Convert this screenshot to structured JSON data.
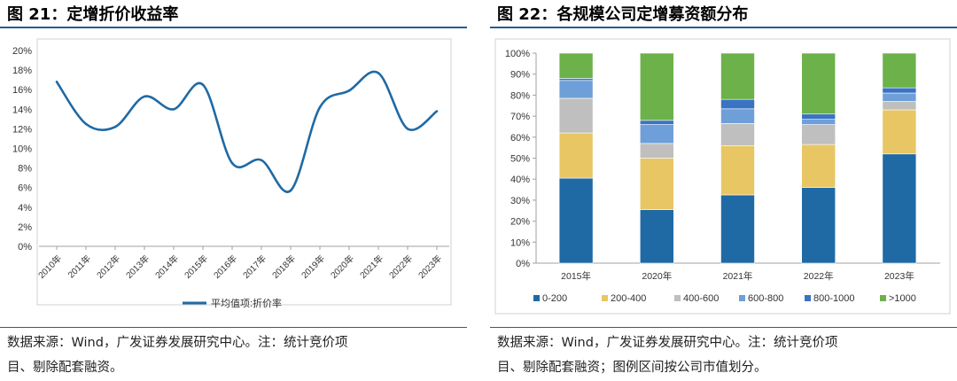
{
  "left": {
    "title": "图 21：定增折价收益率",
    "source_line1": "数据来源：Wind，广发证券发展研究中心。注：统计竞价项",
    "source_line2": "目、剔除配套融资。"
  },
  "right": {
    "title": "图 22：各规模公司定增募资额分布",
    "source_line1": "数据来源：Wind，广发证券发展研究中心。注：统计竞价项",
    "source_line2": "目、剔除配套融资；图例区间按公司市值划分。"
  },
  "colors": {
    "line": "#1f6aa5",
    "rule": "#2a5a9a",
    "seg_0_200": "#1f6aa5",
    "seg_200_400": "#e8c663",
    "seg_400_600": "#bfbfbf",
    "seg_600_800": "#6f9fd8",
    "seg_800_1000": "#3a73c4",
    "seg_gt_1000": "#6db14a"
  },
  "chart_data": [
    {
      "type": "line",
      "categories": [
        "2010年",
        "2011年",
        "2012年",
        "2013年",
        "2014年",
        "2015年",
        "2016年",
        "2017年",
        "2018年",
        "2019年",
        "2020年",
        "2021年",
        "2022年",
        "2023年"
      ],
      "series": [
        {
          "name": "平均值项:折价率",
          "values": [
            16.8,
            12.5,
            12.2,
            15.3,
            14.0,
            16.5,
            8.5,
            8.8,
            5.7,
            14.2,
            15.9,
            17.7,
            12.0,
            13.8
          ]
        }
      ],
      "yticks": [
        "0%",
        "2%",
        "4%",
        "6%",
        "8%",
        "10%",
        "12%",
        "14%",
        "16%",
        "18%",
        "20%"
      ],
      "ylim": [
        0,
        20
      ],
      "legend_position": "bottom",
      "grid": false
    },
    {
      "type": "bar",
      "stacked": true,
      "categories": [
        "2015年",
        "2020年",
        "2021年",
        "2022年",
        "2023年"
      ],
      "series": [
        {
          "name": "0-200",
          "values": [
            40.5,
            25.5,
            32.5,
            36.0,
            52.0
          ]
        },
        {
          "name": "200-400",
          "values": [
            21.5,
            24.5,
            23.5,
            20.5,
            21.0
          ]
        },
        {
          "name": "400-600",
          "values": [
            16.5,
            7.0,
            10.5,
            9.5,
            4.0
          ]
        },
        {
          "name": "600-800",
          "values": [
            8.5,
            9.0,
            7.0,
            2.5,
            4.0
          ]
        },
        {
          "name": "800-1000",
          "values": [
            1.0,
            2.0,
            4.5,
            2.5,
            2.5
          ]
        },
        {
          "name": ">1000",
          "values": [
            12.0,
            32.0,
            22.0,
            29.0,
            16.5
          ]
        }
      ],
      "yticks": [
        "0%",
        "10%",
        "20%",
        "30%",
        "40%",
        "50%",
        "60%",
        "70%",
        "80%",
        "90%",
        "100%"
      ],
      "ylim": [
        0,
        100
      ],
      "legend_position": "bottom",
      "grid": false
    }
  ]
}
